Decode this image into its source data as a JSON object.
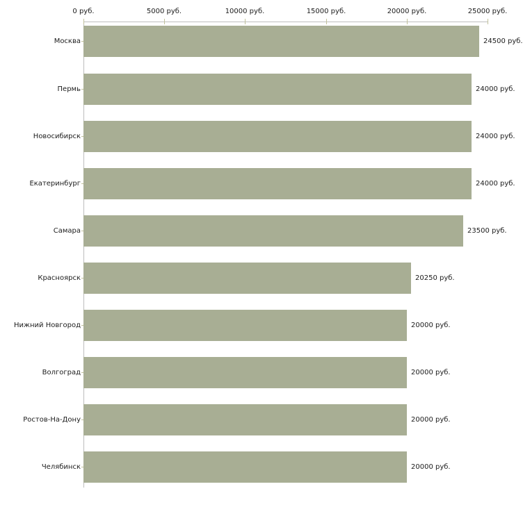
{
  "chart_data": {
    "type": "bar",
    "orientation": "horizontal",
    "title": "",
    "categories": [
      "Москва",
      "Пермь",
      "Новосибирск",
      "Екатеринбург",
      "Самара",
      "Красноярск",
      "Нижний Новгород",
      "Волгоград",
      "Ростов-На-Дону",
      "Челябинск"
    ],
    "values": [
      24500,
      24000,
      24000,
      24000,
      23500,
      20250,
      20000,
      20000,
      20000,
      20000
    ],
    "value_labels": [
      "24500 руб.",
      "24000 руб.",
      "24000 руб.",
      "24000 руб.",
      "23500 руб.",
      "20250 руб.",
      "20000 руб.",
      "20000 руб.",
      "20000 руб.",
      "20000 руб."
    ],
    "unit": "руб.",
    "x_axis": {
      "position": "top",
      "range": [
        0,
        25000
      ],
      "ticks": [
        0,
        5000,
        10000,
        15000,
        20000,
        25000
      ],
      "tick_labels": [
        "0 руб.",
        "5000 руб.",
        "10000 руб.",
        "15000 руб.",
        "20000 руб.",
        "25000 руб."
      ]
    },
    "grid": false,
    "legend": "none",
    "colors": {
      "bar_fill": "#a8ae94",
      "axis_line": "#bdbdbd",
      "tick_mark": "#c1c19b",
      "text": "#1c1c1c",
      "background": "#ffffff"
    }
  }
}
